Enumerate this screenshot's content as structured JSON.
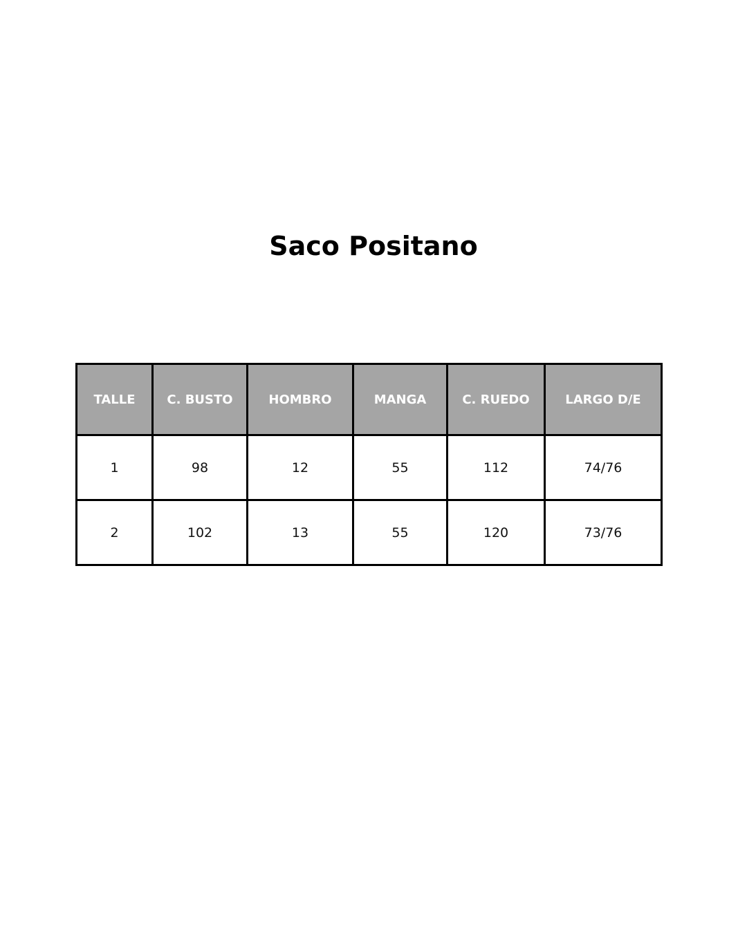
{
  "title": "Saco Positano",
  "colors": {
    "header_bg": "#a5a5a5",
    "header_text": "#ffffff",
    "border": "#000000"
  },
  "table": {
    "headers": [
      "TALLE",
      "C. BUSTO",
      "HOMBRO",
      "MANGA",
      "C. RUEDO",
      "LARGO D/E"
    ],
    "rows": [
      [
        "1",
        "98",
        "12",
        "55",
        "112",
        "74/76"
      ],
      [
        "2",
        "102",
        "13",
        "55",
        "120",
        "73/76"
      ]
    ]
  }
}
